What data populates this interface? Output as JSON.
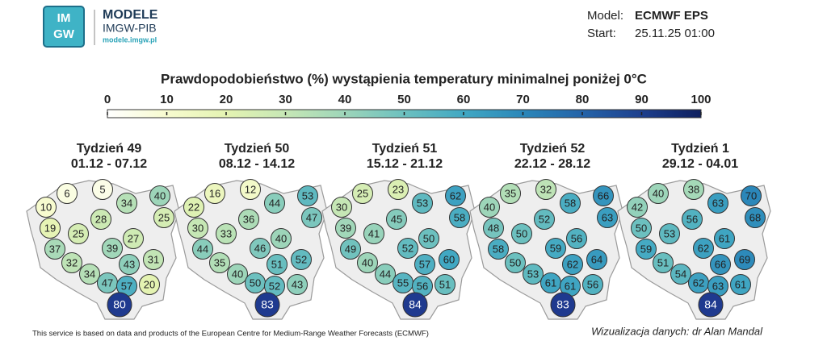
{
  "brand": {
    "logo": [
      "IM",
      "GW"
    ],
    "name": "MODELE",
    "org": "IMGW-PIB",
    "url": "modele.imgw.pl"
  },
  "model": {
    "model_label": "Model:",
    "model": "ECMWF EPS",
    "start_label": "Start:",
    "start": "25.11.25 01:00"
  },
  "title": "Prawdopodobieństwo (%) wystąpienia temperatury minimalnej poniżej 0°C",
  "colorbar": {
    "ticks": [
      0,
      10,
      20,
      30,
      40,
      50,
      60,
      70,
      80,
      90,
      100
    ],
    "colors": [
      "#ffffff",
      "#f7fbcf",
      "#e4f3b2",
      "#c6e7b5",
      "#9dd5b9",
      "#6cc0bf",
      "#41a8c3",
      "#2b87b9",
      "#2463a8",
      "#1d3f8d",
      "#0e1f5e"
    ]
  },
  "weeks": [
    {
      "title": "Tydzień 49",
      "dates": "01.12 - 07.12",
      "values": [
        6,
        5,
        10,
        34,
        40,
        28,
        25,
        19,
        25,
        27,
        39,
        37,
        43,
        31,
        32,
        34,
        47,
        57,
        20,
        80
      ]
    },
    {
      "title": "Tydzień 50",
      "dates": "08.12 - 14.12",
      "values": [
        16,
        12,
        22,
        44,
        53,
        36,
        47,
        30,
        33,
        40,
        46,
        44,
        51,
        52,
        35,
        40,
        50,
        52,
        43,
        83
      ]
    },
    {
      "title": "Tydzień 51",
      "dates": "15.12 - 21.12",
      "values": [
        25,
        23,
        30,
        53,
        62,
        45,
        58,
        39,
        41,
        50,
        52,
        49,
        57,
        60,
        40,
        44,
        55,
        56,
        51,
        84
      ]
    },
    {
      "title": "Tydzień 52",
      "dates": "22.12 - 28.12",
      "values": [
        35,
        32,
        40,
        58,
        66,
        52,
        63,
        48,
        50,
        56,
        59,
        58,
        62,
        64,
        50,
        53,
        61,
        61,
        56,
        83
      ]
    },
    {
      "title": "Tydzień 1",
      "dates": "29.12 - 04.01",
      "values": [
        40,
        38,
        42,
        63,
        70,
        56,
        68,
        50,
        53,
        61,
        62,
        59,
        66,
        69,
        51,
        54,
        62,
        63,
        61,
        84
      ]
    }
  ],
  "footer": {
    "source": "This service is based on data and products of the European Centre for Medium-Range Weather Forecasts (ECMWF)",
    "credit": "Wizualizacja danych: dr Alan Mandal"
  }
}
